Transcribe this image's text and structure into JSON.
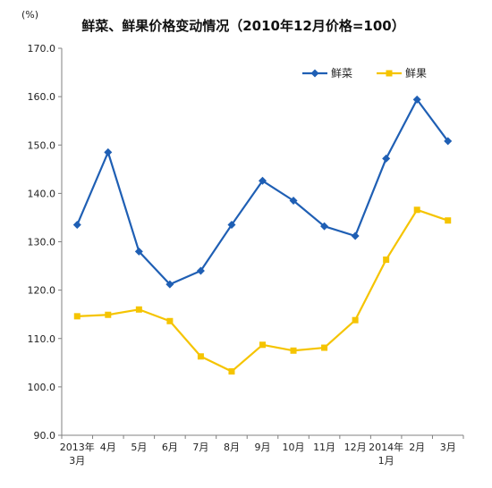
{
  "chart_data": {
    "type": "line",
    "title": "鲜菜、鲜果价格变动情况（2010年12月价格=100）",
    "unit_label": "(%)",
    "categories": [
      [
        "2013年",
        "3月"
      ],
      [
        "4月"
      ],
      [
        "5月"
      ],
      [
        "6月"
      ],
      [
        "7月"
      ],
      [
        "8月"
      ],
      [
        "9月"
      ],
      [
        "10月"
      ],
      [
        "11月"
      ],
      [
        "12月"
      ],
      [
        "2014年",
        "1月"
      ],
      [
        "2月"
      ],
      [
        "3月"
      ]
    ],
    "ylim": [
      90,
      170
    ],
    "yticks": [
      "90.0",
      "100.0",
      "110.0",
      "120.0",
      "130.0",
      "140.0",
      "150.0",
      "160.0",
      "170.0"
    ],
    "grid": false,
    "legend_position": "top-right",
    "series": [
      {
        "name": "鲜菜",
        "color": "#1f5fb4",
        "marker": "diamond",
        "values": [
          133.5,
          148.5,
          128.0,
          121.2,
          124.0,
          133.5,
          142.6,
          138.5,
          133.2,
          131.2,
          147.2,
          159.4,
          150.8
        ]
      },
      {
        "name": "鲜果",
        "color": "#f5c400",
        "marker": "square",
        "values": [
          114.6,
          114.9,
          116.0,
          113.6,
          106.3,
          103.2,
          108.7,
          107.5,
          108.1,
          113.8,
          126.3,
          136.6,
          134.4
        ]
      }
    ]
  }
}
